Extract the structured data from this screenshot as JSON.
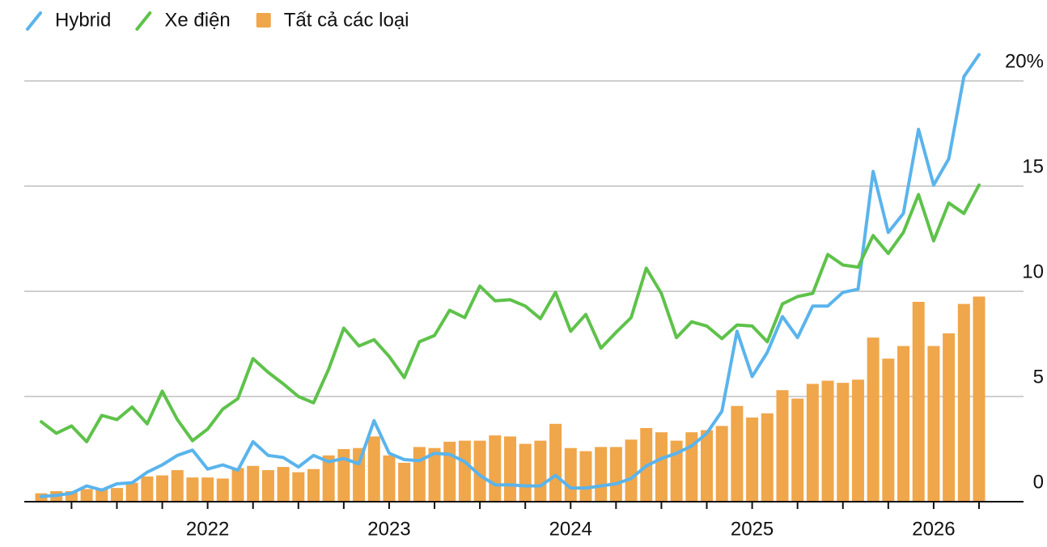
{
  "chart_data": {
    "type": "bar",
    "legend": "top-left",
    "grid": true,
    "categories": [
      null,
      null,
      null,
      null,
      null,
      null,
      null,
      null,
      null,
      null,
      null,
      "2022",
      null,
      null,
      null,
      null,
      null,
      null,
      null,
      null,
      null,
      null,
      null,
      "2023",
      null,
      null,
      null,
      null,
      null,
      null,
      null,
      null,
      null,
      null,
      null,
      "2024",
      null,
      null,
      null,
      null,
      null,
      null,
      null,
      null,
      null,
      null,
      null,
      "2025",
      null,
      null,
      null,
      null,
      null,
      null,
      null,
      null,
      null,
      null,
      null,
      "2026",
      null,
      null,
      null
    ],
    "ylim": [
      0,
      20
    ],
    "yticks": [
      0,
      5,
      10,
      15,
      {
        "value": 20,
        "label": "20%"
      }
    ],
    "series": [
      {
        "name": "Hybrid",
        "type": "line",
        "color": "#5ab4ec",
        "values": [
          0.25,
          0.3,
          0.4,
          0.75,
          0.55,
          0.85,
          0.9,
          1.4,
          1.75,
          2.2,
          2.45,
          1.55,
          1.75,
          1.5,
          2.85,
          2.2,
          2.1,
          1.65,
          2.2,
          1.9,
          2.05,
          1.8,
          3.85,
          2.3,
          2.0,
          1.95,
          2.3,
          2.25,
          1.9,
          1.25,
          0.8,
          0.8,
          0.75,
          0.75,
          1.25,
          0.65,
          0.65,
          0.75,
          0.85,
          1.1,
          1.7,
          2.05,
          2.3,
          2.65,
          3.25,
          4.3,
          8.1,
          5.95,
          7.1,
          8.8,
          7.8,
          9.3,
          9.3,
          9.95,
          10.1,
          15.7,
          12.8,
          13.7,
          17.7,
          15.05,
          16.3,
          20.2,
          21.25
        ]
      },
      {
        "name": "Xe điện",
        "type": "line",
        "color": "#5ec24a",
        "values": [
          3.8,
          3.25,
          3.6,
          2.85,
          4.1,
          3.9,
          4.5,
          3.7,
          5.25,
          3.9,
          2.9,
          3.45,
          4.4,
          4.9,
          6.8,
          6.15,
          5.6,
          5.0,
          4.7,
          6.3,
          8.25,
          7.4,
          7.7,
          6.9,
          5.9,
          7.6,
          7.9,
          9.1,
          8.75,
          10.25,
          9.55,
          9.6,
          9.3,
          8.7,
          9.95,
          8.1,
          8.9,
          7.3,
          8.05,
          8.75,
          11.1,
          9.9,
          7.8,
          8.55,
          8.35,
          7.75,
          8.4,
          8.35,
          7.6,
          9.4,
          9.75,
          9.9,
          11.75,
          11.25,
          11.15,
          12.65,
          11.8,
          12.8,
          14.6,
          12.4,
          14.2,
          13.7,
          15.05
        ]
      },
      {
        "name": "Tất cả các loại",
        "type": "bar",
        "color": "#f0a64a",
        "values": [
          0.4,
          0.5,
          0.5,
          0.6,
          0.6,
          0.65,
          0.9,
          1.2,
          1.25,
          1.5,
          1.15,
          1.15,
          1.1,
          1.6,
          1.7,
          1.5,
          1.65,
          1.4,
          1.55,
          2.2,
          2.5,
          2.55,
          3.1,
          2.2,
          1.85,
          2.6,
          2.55,
          2.85,
          2.9,
          2.9,
          3.15,
          3.1,
          2.75,
          2.9,
          3.7,
          2.55,
          2.4,
          2.6,
          2.6,
          2.95,
          3.5,
          3.3,
          2.9,
          3.3,
          3.4,
          3.6,
          4.55,
          4.0,
          4.2,
          5.3,
          4.9,
          5.6,
          5.75,
          5.65,
          5.8,
          7.8,
          6.8,
          7.4,
          9.5,
          7.4,
          8.0,
          9.4,
          9.75
        ]
      }
    ]
  }
}
